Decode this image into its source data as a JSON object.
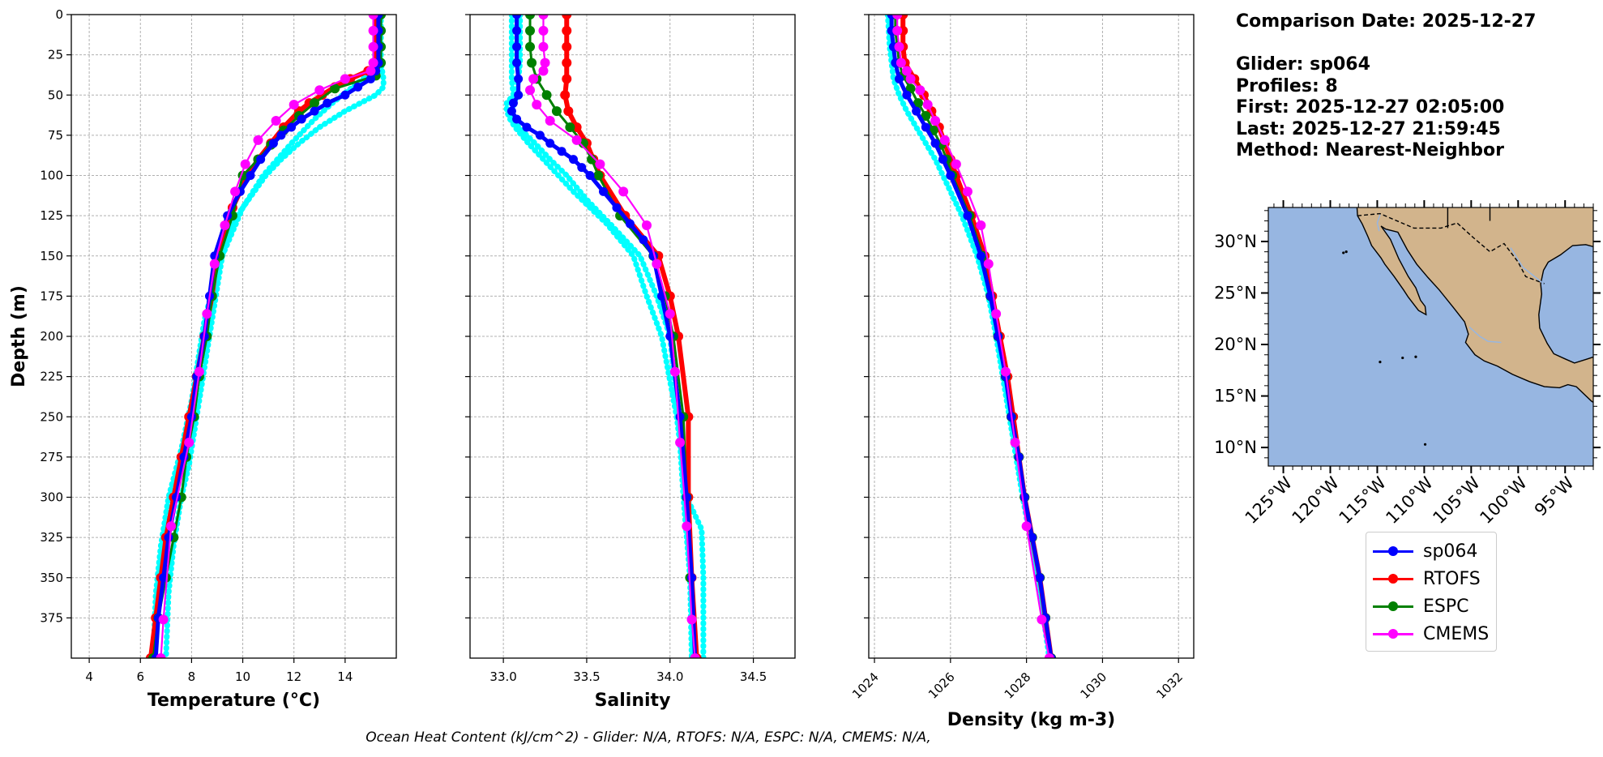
{
  "chart_data": {
    "type": "line",
    "ylabel": "Depth (m)",
    "yticks": [
      0,
      25,
      50,
      75,
      100,
      125,
      150,
      175,
      200,
      225,
      250,
      275,
      300,
      325,
      350,
      375
    ],
    "ylim": [
      400,
      0
    ],
    "grid": true,
    "legend": {
      "placement": "bottom-right",
      "entries": [
        "sp064",
        "RTOFS",
        "ESPC",
        "CMEMS"
      ]
    },
    "colors": {
      "sp064": "#0000ff",
      "RTOFS": "#ff0000",
      "ESPC": "#008000",
      "CMEMS": "#ff00ff",
      "glider_raw": "#00ffff"
    },
    "panels": [
      {
        "id": "temperature",
        "xlabel": "Temperature (°C)",
        "xlim": [
          3.3,
          16
        ],
        "xticks": [
          4,
          6,
          8,
          10,
          12,
          14
        ],
        "xtick_labels": [
          "4",
          "6",
          "8",
          "10",
          "12",
          "14"
        ],
        "series": {
          "sp064": {
            "depth": [
              0,
              10,
              20,
              30,
              35,
              40,
              45,
              50,
              55,
              60,
              65,
              70,
              75,
              80,
              90,
              100,
              110,
              125,
              150,
              175,
              200,
              225,
              250,
              275,
              300,
              325,
              350,
              375,
              400
            ],
            "values": [
              15.3,
              15.3,
              15.3,
              15.3,
              15.2,
              15.0,
              14.5,
              14.0,
              13.3,
              12.8,
              12.3,
              11.9,
              11.5,
              11.2,
              10.7,
              10.3,
              9.9,
              9.4,
              8.9,
              8.7,
              8.5,
              8.2,
              8.0,
              7.7,
              7.4,
              7.1,
              6.9,
              6.7,
              6.6
            ]
          },
          "RTOFS": {
            "depth": [
              0,
              10,
              20,
              30,
              35,
              40,
              45,
              50,
              55,
              60,
              70,
              80,
              90,
              100,
              120,
              150,
              175,
              200,
              225,
              250,
              275,
              300,
              325,
              350,
              375,
              400
            ],
            "values": [
              15.2,
              15.2,
              15.2,
              15.2,
              14.9,
              14.2,
              13.6,
              13.1,
              12.6,
              12.2,
              11.6,
              11.1,
              10.6,
              10.2,
              9.6,
              9.0,
              8.8,
              8.5,
              8.2,
              7.9,
              7.6,
              7.3,
              7.0,
              6.8,
              6.6,
              6.4
            ]
          },
          "ESPC": {
            "depth": [
              0,
              10,
              20,
              30,
              38,
              46,
              55,
              63,
              72,
              81,
              90,
              100,
              125,
              150,
              175,
              200,
              225,
              250,
              275,
              300,
              325,
              350,
              375,
              400
            ],
            "values": [
              15.4,
              15.4,
              15.4,
              15.4,
              15.2,
              13.6,
              12.8,
              12.2,
              11.6,
              11.1,
              10.6,
              10.0,
              9.6,
              9.1,
              8.8,
              8.6,
              8.3,
              8.1,
              7.8,
              7.6,
              7.3,
              7.0,
              6.7,
              6.5
            ]
          },
          "CMEMS": {
            "depth": [
              0,
              10,
              20,
              30,
              35,
              40,
              47,
              56,
              66,
              78,
              93,
              110,
              131,
              155,
              186,
              222,
              266,
              318,
              376,
              400
            ],
            "values": [
              15.1,
              15.1,
              15.1,
              15.1,
              15.0,
              14.0,
              13.0,
              12.0,
              11.3,
              10.6,
              10.1,
              9.7,
              9.3,
              8.9,
              8.6,
              8.3,
              7.9,
              7.2,
              6.9,
              6.8
            ]
          },
          "glider_raw": [
            {
              "depth": [
                0,
                20,
                30,
                40,
                45,
                50,
                55,
                60,
                70,
                80,
                90,
                100,
                120,
                150,
                180,
                200,
                230,
                260,
                280,
                300,
                330,
                360,
                400
              ],
              "values": [
                15.4,
                15.4,
                15.4,
                15.5,
                15.5,
                15.2,
                14.6,
                14.0,
                13.0,
                12.2,
                11.5,
                10.9,
                10.0,
                9.2,
                8.9,
                8.7,
                8.4,
                8.1,
                7.9,
                7.6,
                7.3,
                7.1,
                7.0
              ]
            },
            {
              "depth": [
                0,
                20,
                35,
                45,
                55,
                65,
                80,
                100,
                130,
                160,
                190,
                210,
                240,
                270,
                300,
                330,
                360,
                400
              ],
              "values": [
                15.2,
                15.2,
                15.1,
                14.3,
                13.5,
                12.8,
                11.9,
                10.8,
                9.6,
                9.0,
                8.5,
                8.3,
                8.0,
                7.6,
                7.1,
                6.8,
                6.6,
                6.5
              ]
            }
          ]
        }
      },
      {
        "id": "salinity",
        "xlabel": "Salinity",
        "xlim": [
          32.8,
          34.75
        ],
        "xticks": [
          33.0,
          33.5,
          34.0,
          34.5
        ],
        "xtick_labels": [
          "33.0",
          "33.5",
          "34.0",
          "34.5"
        ],
        "series": {
          "sp064": {
            "depth": [
              0,
              10,
              20,
              30,
              40,
              50,
              55,
              60,
              65,
              70,
              75,
              80,
              85,
              90,
              95,
              100,
              110,
              120,
              130,
              140,
              150,
              175,
              200,
              250,
              300,
              350,
              400
            ],
            "values": [
              33.08,
              33.08,
              33.08,
              33.08,
              33.09,
              33.09,
              33.06,
              33.05,
              33.08,
              33.14,
              33.22,
              33.28,
              33.35,
              33.42,
              33.47,
              33.52,
              33.6,
              33.68,
              33.76,
              33.84,
              33.9,
              33.95,
              34.0,
              34.06,
              34.1,
              34.13,
              34.15
            ]
          },
          "RTOFS": {
            "depth": [
              0,
              10,
              20,
              30,
              40,
              50,
              60,
              70,
              80,
              90,
              100,
              125,
              150,
              175,
              200,
              250,
              300,
              350,
              400
            ],
            "values": [
              33.38,
              33.38,
              33.38,
              33.38,
              33.38,
              33.37,
              33.39,
              33.44,
              33.5,
              33.54,
              33.58,
              33.73,
              33.93,
              34.0,
              34.05,
              34.11,
              34.11,
              34.13,
              34.16
            ]
          },
          "ESPC": {
            "depth": [
              0,
              10,
              20,
              30,
              40,
              50,
              60,
              70,
              80,
              90,
              100,
              125,
              150,
              175,
              200,
              250,
              300,
              350,
              400
            ],
            "values": [
              33.16,
              33.16,
              33.16,
              33.17,
              33.2,
              33.26,
              33.32,
              33.4,
              33.48,
              33.53,
              33.57,
              33.7,
              33.9,
              33.97,
              34.02,
              34.08,
              34.1,
              34.12,
              34.15
            ]
          },
          "CMEMS": {
            "depth": [
              0,
              10,
              20,
              30,
              35,
              40,
              47,
              56,
              66,
              78,
              93,
              110,
              131,
              155,
              186,
              222,
              266,
              318,
              376,
              400
            ],
            "values": [
              33.24,
              33.24,
              33.24,
              33.25,
              33.24,
              33.18,
              33.16,
              33.2,
              33.28,
              33.44,
              33.58,
              33.72,
              33.86,
              33.92,
              34.0,
              34.03,
              34.06,
              34.1,
              34.13,
              34.15
            ]
          },
          "glider_raw": [
            {
              "depth": [
                0,
                20,
                40,
                50,
                55,
                60,
                65,
                70,
                80,
                90,
                100,
                110,
                120,
                130,
                140,
                150,
                175,
                200,
                250,
                300,
                320,
                350,
                400
              ],
              "values": [
                33.05,
                33.05,
                33.05,
                33.06,
                33.02,
                33.02,
                33.04,
                33.07,
                33.15,
                33.24,
                33.33,
                33.42,
                33.52,
                33.62,
                33.7,
                33.78,
                33.86,
                33.95,
                34.04,
                34.1,
                34.19,
                34.2,
                34.2
              ]
            },
            {
              "depth": [
                0,
                30,
                50,
                60,
                70,
                80,
                90,
                100,
                115,
                130,
                150,
                175,
                200,
                250,
                300,
                350,
                400
              ],
              "values": [
                33.1,
                33.1,
                33.08,
                33.05,
                33.09,
                33.19,
                33.28,
                33.38,
                33.5,
                33.64,
                33.82,
                33.92,
                34.0,
                34.05,
                34.08,
                34.12,
                34.13
              ]
            }
          ]
        }
      },
      {
        "id": "density",
        "xlabel": "Density (kg m-3)",
        "xlim": [
          1023.85,
          1032.4
        ],
        "xticks": [
          1024,
          1026,
          1028,
          1030,
          1032
        ],
        "xtick_labels": [
          "1024",
          "1026",
          "1028",
          "1030",
          "1032"
        ],
        "series": {
          "sp064": {
            "depth": [
              0,
              10,
              20,
              30,
              40,
              50,
              60,
              70,
              80,
              90,
              100,
              125,
              150,
              175,
              200,
              225,
              250,
              275,
              300,
              325,
              350,
              375,
              400
            ],
            "values": [
              1024.45,
              1024.45,
              1024.5,
              1024.55,
              1024.65,
              1024.85,
              1025.1,
              1025.35,
              1025.6,
              1025.8,
              1026.0,
              1026.45,
              1026.8,
              1027.05,
              1027.25,
              1027.45,
              1027.6,
              1027.8,
              1027.95,
              1028.15,
              1028.35,
              1028.5,
              1028.65
            ]
          },
          "RTOFS": {
            "depth": [
              0,
              10,
              20,
              30,
              40,
              50,
              60,
              70,
              80,
              90,
              100,
              125,
              150,
              175,
              200,
              225,
              250,
              275,
              300,
              325,
              350,
              375,
              400
            ],
            "values": [
              1024.75,
              1024.75,
              1024.75,
              1024.8,
              1025.05,
              1025.3,
              1025.5,
              1025.7,
              1025.85,
              1026.0,
              1026.15,
              1026.55,
              1026.9,
              1027.1,
              1027.3,
              1027.5,
              1027.65,
              1027.8,
              1027.95,
              1028.15,
              1028.35,
              1028.5,
              1028.65
            ]
          },
          "ESPC": {
            "depth": [
              0,
              10,
              20,
              30,
              38,
              46,
              55,
              63,
              72,
              81,
              90,
              100,
              125,
              150,
              175,
              200,
              225,
              250,
              275,
              300,
              325,
              350,
              375,
              400
            ],
            "values": [
              1024.55,
              1024.55,
              1024.6,
              1024.65,
              1024.75,
              1024.95,
              1025.15,
              1025.35,
              1025.55,
              1025.75,
              1025.9,
              1026.05,
              1026.5,
              1026.85,
              1027.05,
              1027.25,
              1027.45,
              1027.6,
              1027.8,
              1027.95,
              1028.15,
              1028.35,
              1028.5,
              1028.65
            ]
          },
          "CMEMS": {
            "depth": [
              0,
              10,
              20,
              30,
              35,
              40,
              47,
              56,
              66,
              78,
              93,
              110,
              131,
              155,
              186,
              222,
              266,
              318,
              376,
              400
            ],
            "values": [
              1024.6,
              1024.6,
              1024.65,
              1024.7,
              1024.85,
              1024.95,
              1025.2,
              1025.4,
              1025.6,
              1025.85,
              1026.15,
              1026.45,
              1026.8,
              1027.0,
              1027.2,
              1027.45,
              1027.7,
              1028.0,
              1028.4,
              1028.6
            ]
          },
          "glider_raw": [
            {
              "depth": [
                0,
                20,
                40,
                50,
                60,
                70,
                80,
                90,
                100,
                125,
                150,
                175,
                200,
                250,
                300,
                350,
                400
              ],
              "values": [
                1024.35,
                1024.4,
                1024.5,
                1024.65,
                1024.85,
                1025.1,
                1025.35,
                1025.6,
                1025.8,
                1026.3,
                1026.7,
                1027.0,
                1027.2,
                1027.55,
                1027.9,
                1028.3,
                1028.6
              ]
            }
          ]
        }
      }
    ]
  },
  "info": {
    "comparison_date": "Comparison Date: 2025-12-27",
    "glider": "Glider: sp064",
    "profiles": "Profiles: 8",
    "first": "First: 2025-12-27 02:05:00",
    "last": "Last: 2025-12-27 21:59:45",
    "method": "Method: Nearest-Neighbor"
  },
  "map": {
    "lat_labels": [
      "30°N",
      "25°N",
      "20°N",
      "15°N",
      "10°N"
    ],
    "lon_labels": [
      "125°W",
      "120°W",
      "115°W",
      "110°W",
      "105°W",
      "100°W",
      "95°W"
    ],
    "ocean_color": "#97b6e1",
    "land_color": "#d2b48c"
  },
  "footer": "Ocean Heat Content (kJ/cm^2) - Glider: N/A,  RTOFS: N/A,  ESPC: N/A,  CMEMS: N/A,"
}
